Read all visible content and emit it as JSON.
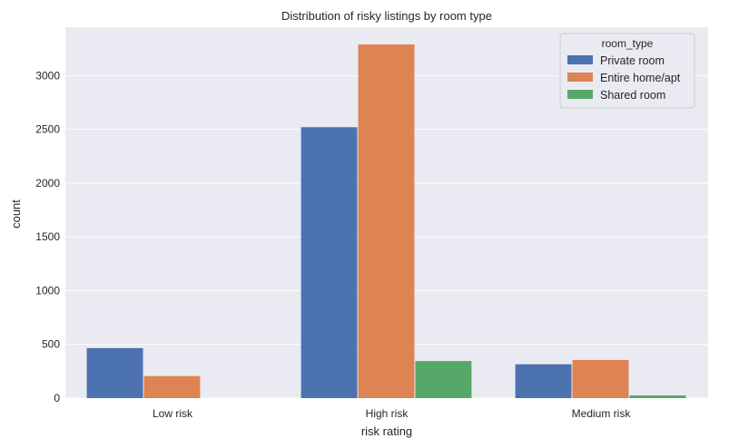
{
  "chart_data": {
    "type": "bar",
    "title": "Distribution of risky listings by room type",
    "xlabel": "risk rating",
    "ylabel": "count",
    "categories": [
      "Low risk",
      "High risk",
      "Medium risk"
    ],
    "series": [
      {
        "name": "Private room",
        "values": [
          465,
          2520,
          315
        ],
        "color": "#4c72b0"
      },
      {
        "name": "Entire home/apt",
        "values": [
          205,
          3290,
          355
        ],
        "color": "#dd8452"
      },
      {
        "name": "Shared room",
        "values": [
          0,
          345,
          25
        ],
        "color": "#55a868"
      }
    ],
    "ylim": [
      0,
      3450
    ],
    "yticks": [
      0,
      500,
      1000,
      1500,
      2000,
      2500,
      3000
    ],
    "legend": {
      "title": "room_type",
      "position": "top-right"
    },
    "grid": true,
    "background": "#eaeaf2"
  }
}
